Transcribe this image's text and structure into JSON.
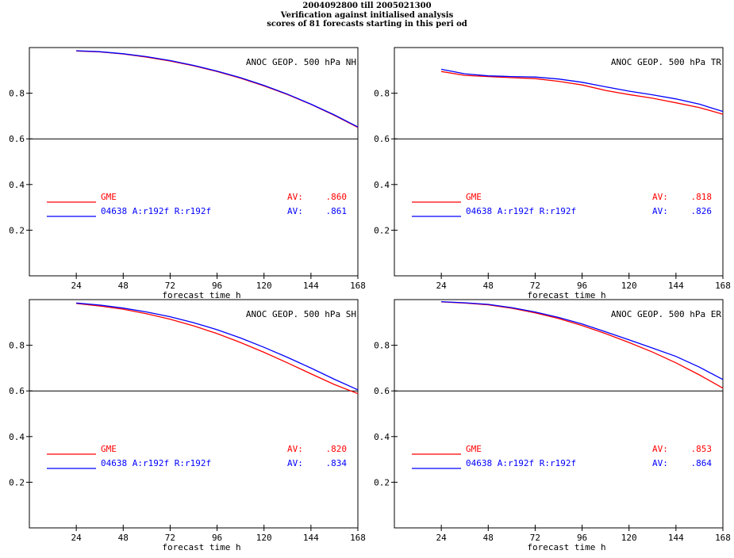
{
  "header": {
    "line1": "2004092800 till 2005021300",
    "line2": "Verification against initialised analysis",
    "line3": "scores of  81 forecasts starting in this peri od"
  },
  "colors": {
    "series1": "#ff0000",
    "series2": "#0000ff",
    "axis": "#000000",
    "text": "#000000"
  },
  "chart_data": [
    {
      "type": "line",
      "title": "ANOC GEOP. 500 hPa NH",
      "xlabel": "forecast time   h",
      "ylabel": "",
      "xlim": [
        0,
        168
      ],
      "ylim": [
        0,
        1
      ],
      "xticks": [
        "24",
        "48",
        "72",
        "96",
        "120",
        "144",
        "168"
      ],
      "yticks": [
        "0.2",
        "0.4",
        "0.6",
        "0.8"
      ],
      "reference_line": 0.6,
      "x": [
        24,
        36,
        48,
        60,
        72,
        84,
        96,
        108,
        120,
        132,
        144,
        156,
        168
      ],
      "series": [
        {
          "name": "GME",
          "av_label": "AV:",
          "av": ".860",
          "values": [
            0.985,
            0.981,
            0.972,
            0.958,
            0.941,
            0.92,
            0.895,
            0.866,
            0.832,
            0.794,
            0.751,
            0.703,
            0.65
          ]
        },
        {
          "name": "04638   A:r192f  R:r192f",
          "av_label": "AV:",
          "av": ".861",
          "values": [
            0.986,
            0.982,
            0.973,
            0.96,
            0.943,
            0.922,
            0.897,
            0.868,
            0.834,
            0.796,
            0.752,
            0.705,
            0.652
          ]
        }
      ]
    },
    {
      "type": "line",
      "title": "ANOC GEOP. 500 hPa TR",
      "xlabel": "forecast time   h",
      "ylabel": "",
      "xlim": [
        0,
        168
      ],
      "ylim": [
        0,
        1
      ],
      "xticks": [
        "24",
        "48",
        "72",
        "96",
        "120",
        "144",
        "168"
      ],
      "yticks": [
        "0.2",
        "0.4",
        "0.6",
        "0.8"
      ],
      "reference_line": 0.6,
      "x": [
        24,
        36,
        48,
        60,
        72,
        84,
        96,
        108,
        120,
        132,
        144,
        156,
        168
      ],
      "series": [
        {
          "name": "GME",
          "av_label": "AV:",
          "av": ".818",
          "values": [
            0.895,
            0.878,
            0.873,
            0.868,
            0.864,
            0.852,
            0.836,
            0.812,
            0.794,
            0.778,
            0.758,
            0.737,
            0.708
          ]
        },
        {
          "name": "04638   A:r192f  R:r192f",
          "av_label": "AV:",
          "av": ".826",
          "values": [
            0.905,
            0.885,
            0.876,
            0.873,
            0.871,
            0.862,
            0.848,
            0.828,
            0.809,
            0.793,
            0.775,
            0.752,
            0.72
          ]
        }
      ]
    },
    {
      "type": "line",
      "title": "ANOC GEOP. 500 hPa SH",
      "xlabel": "forecast time   h",
      "ylabel": "",
      "xlim": [
        0,
        168
      ],
      "ylim": [
        0,
        1
      ],
      "xticks": [
        "24",
        "48",
        "72",
        "96",
        "120",
        "144",
        "168"
      ],
      "yticks": [
        "0.2",
        "0.4",
        "0.6",
        "0.8"
      ],
      "reference_line": 0.6,
      "x": [
        24,
        36,
        48,
        60,
        72,
        84,
        96,
        108,
        120,
        132,
        144,
        156,
        168
      ],
      "series": [
        {
          "name": "GME",
          "av_label": "AV:",
          "av": ".820",
          "values": [
            0.983,
            0.972,
            0.958,
            0.938,
            0.914,
            0.885,
            0.851,
            0.812,
            0.769,
            0.723,
            0.675,
            0.628,
            0.588
          ]
        },
        {
          "name": "04638   A:r192f  R:r192f",
          "av_label": "AV:",
          "av": ".834",
          "values": [
            0.985,
            0.976,
            0.963,
            0.946,
            0.925,
            0.899,
            0.868,
            0.832,
            0.791,
            0.747,
            0.7,
            0.651,
            0.605
          ]
        }
      ]
    },
    {
      "type": "line",
      "title": "ANOC GEOP. 500 hPa ER",
      "xlabel": "forecast time   h",
      "ylabel": "",
      "xlim": [
        0,
        168
      ],
      "ylim": [
        0,
        1
      ],
      "xticks": [
        "24",
        "48",
        "72",
        "96",
        "120",
        "144",
        "168"
      ],
      "yticks": [
        "0.2",
        "0.4",
        "0.6",
        "0.8"
      ],
      "reference_line": 0.6,
      "x": [
        24,
        36,
        48,
        60,
        72,
        84,
        96,
        108,
        120,
        132,
        144,
        156,
        168
      ],
      "series": [
        {
          "name": "GME",
          "av_label": "AV:",
          "av": ".853",
          "values": [
            0.99,
            0.985,
            0.977,
            0.962,
            0.942,
            0.917,
            0.886,
            0.851,
            0.812,
            0.77,
            0.723,
            0.67,
            0.612
          ]
        },
        {
          "name": "04638   A:r192f  R:r192f",
          "av_label": "AV:",
          "av": ".864",
          "values": [
            0.991,
            0.986,
            0.979,
            0.965,
            0.946,
            0.922,
            0.893,
            0.859,
            0.824,
            0.788,
            0.751,
            0.704,
            0.65
          ]
        }
      ]
    }
  ]
}
